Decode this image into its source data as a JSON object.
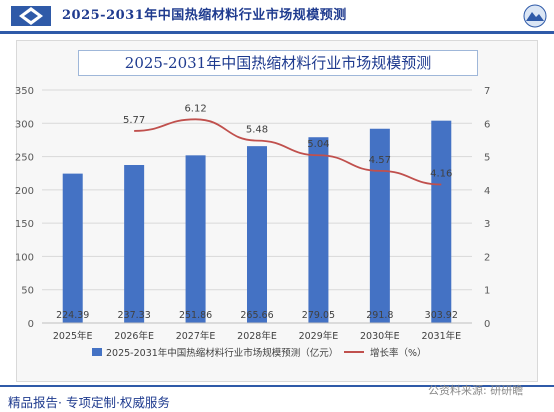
{
  "header": {
    "title": "2025-2031年中国热缩材料行业市场规模预测"
  },
  "chart_data": {
    "type": "bar",
    "title": "2025-2031年中国热缩材料行业市场规模预测",
    "categories": [
      "2025年E",
      "2026年E",
      "2027年E",
      "2028年E",
      "2029年E",
      "2030年E",
      "2031年E"
    ],
    "series": [
      {
        "name": "2025-2031年中国热缩材料行业市场规模预测（亿元）",
        "type": "bar",
        "axis": "left",
        "color": "#4472c4",
        "values": [
          224.39,
          237.33,
          251.86,
          265.66,
          279.05,
          291.8,
          303.92
        ],
        "labels": [
          "224.39",
          "237.33",
          "251.86",
          "265.66",
          "279.05",
          "291.8",
          "303.92"
        ]
      },
      {
        "name": "增长率（%）",
        "type": "line",
        "axis": "right",
        "color": "#c0504d",
        "values": [
          null,
          5.77,
          6.12,
          5.48,
          5.04,
          4.57,
          4.16
        ],
        "labels": [
          "",
          "5.77",
          "6.12",
          "5.48",
          "5.04",
          "4.57",
          "4.16"
        ]
      }
    ],
    "ylim_left": [
      0,
      350
    ],
    "yticks_left": [
      "0",
      "50",
      "100",
      "150",
      "200",
      "250",
      "300",
      "350"
    ],
    "ylim_right": [
      0,
      7
    ],
    "yticks_right": [
      "0",
      "1",
      "2",
      "3",
      "4",
      "5",
      "6",
      "7"
    ],
    "grid": true,
    "legend": "bottom"
  },
  "footer": {
    "text": "精品报告· 专项定制·权威服务"
  },
  "watermark": "公资料来源: 研研瞻"
}
